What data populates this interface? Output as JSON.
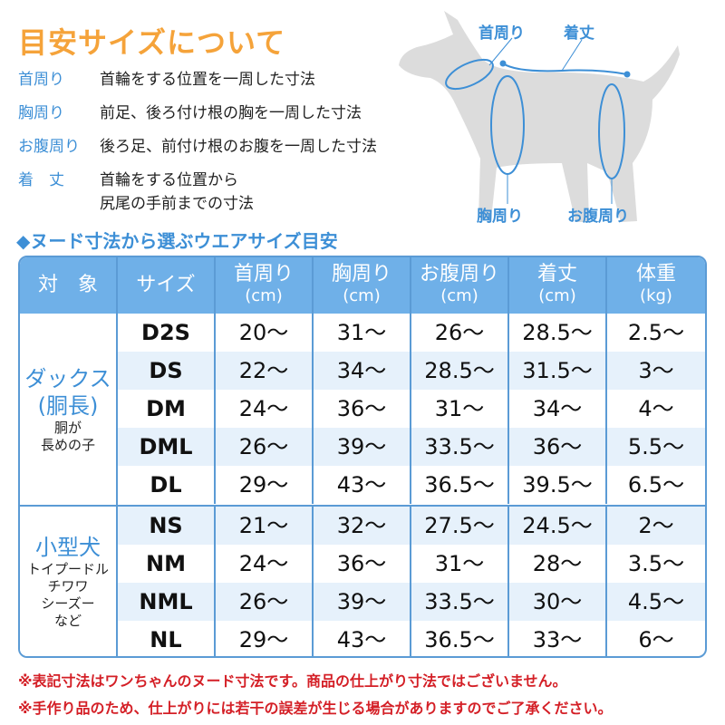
{
  "title": "目安サイズについて",
  "definitions": [
    {
      "term": "首周り",
      "desc": "首輪をする位置を一周した寸法"
    },
    {
      "term": "胸周り",
      "desc": "前足、後ろ付け根の胸を一周した寸法"
    },
    {
      "term": "お腹周り",
      "desc": "後ろ足、前付け根のお腹を一周した寸法"
    },
    {
      "term": "着　丈",
      "desc": "首輪をする位置から\n尻尾の手前までの寸法"
    }
  ],
  "diagram_labels": {
    "neck": "首周り",
    "length": "着丈",
    "chest": "胸周り",
    "belly": "お腹周り"
  },
  "subtitle": "◆ヌード寸法から選ぶウエアサイズ目安",
  "table": {
    "headers": [
      {
        "label": "対　象",
        "unit": ""
      },
      {
        "label": "サイズ",
        "unit": ""
      },
      {
        "label": "首周り",
        "unit": "(cm)"
      },
      {
        "label": "胸周り",
        "unit": "(cm)"
      },
      {
        "label": "お腹周り",
        "unit": "(cm)"
      },
      {
        "label": "着丈",
        "unit": "(cm)"
      },
      {
        "label": "体重",
        "unit": "(kg)"
      }
    ],
    "groups": [
      {
        "name": "ダックス\n(胴長)",
        "sub": "胴が\n長めの子",
        "rows": [
          [
            "D2S",
            "20～",
            "31～",
            "26～",
            "28.5～",
            "2.5～"
          ],
          [
            "DS",
            "22～",
            "34～",
            "28.5～",
            "31.5～",
            "3～"
          ],
          [
            "DM",
            "24～",
            "36～",
            "31～",
            "34～",
            "4～"
          ],
          [
            "DML",
            "26～",
            "39～",
            "33.5～",
            "36～",
            "5.5～"
          ],
          [
            "DL",
            "29～",
            "43～",
            "36.5～",
            "39.5～",
            "6.5～"
          ]
        ]
      },
      {
        "name": "小型犬",
        "sub": "トイプードル\nチワワ\nシーズー\nなど",
        "rows": [
          [
            "NS",
            "21～",
            "32～",
            "27.5～",
            "24.5～",
            "2～"
          ],
          [
            "NM",
            "24～",
            "36～",
            "31～",
            "28～",
            "3.5～"
          ],
          [
            "NML",
            "26～",
            "39～",
            "33.5～",
            "30～",
            "4.5～"
          ],
          [
            "NL",
            "29～",
            "43～",
            "36.5～",
            "33～",
            "6～"
          ]
        ]
      }
    ]
  },
  "notes": [
    "※表記寸法はワンちゃんのヌード寸法です。商品の仕上がり寸法ではございません。",
    "※手作り品のため、仕上がりには若干の誤差が生じる場合がありますのでご了承ください。"
  ],
  "colors": {
    "title": "#f5a33a",
    "accent": "#3d8fd6",
    "header": "#6fb0e8",
    "stripe": "#e6f1fb",
    "note": "#d41f26",
    "dog": "#dcdcdc"
  }
}
